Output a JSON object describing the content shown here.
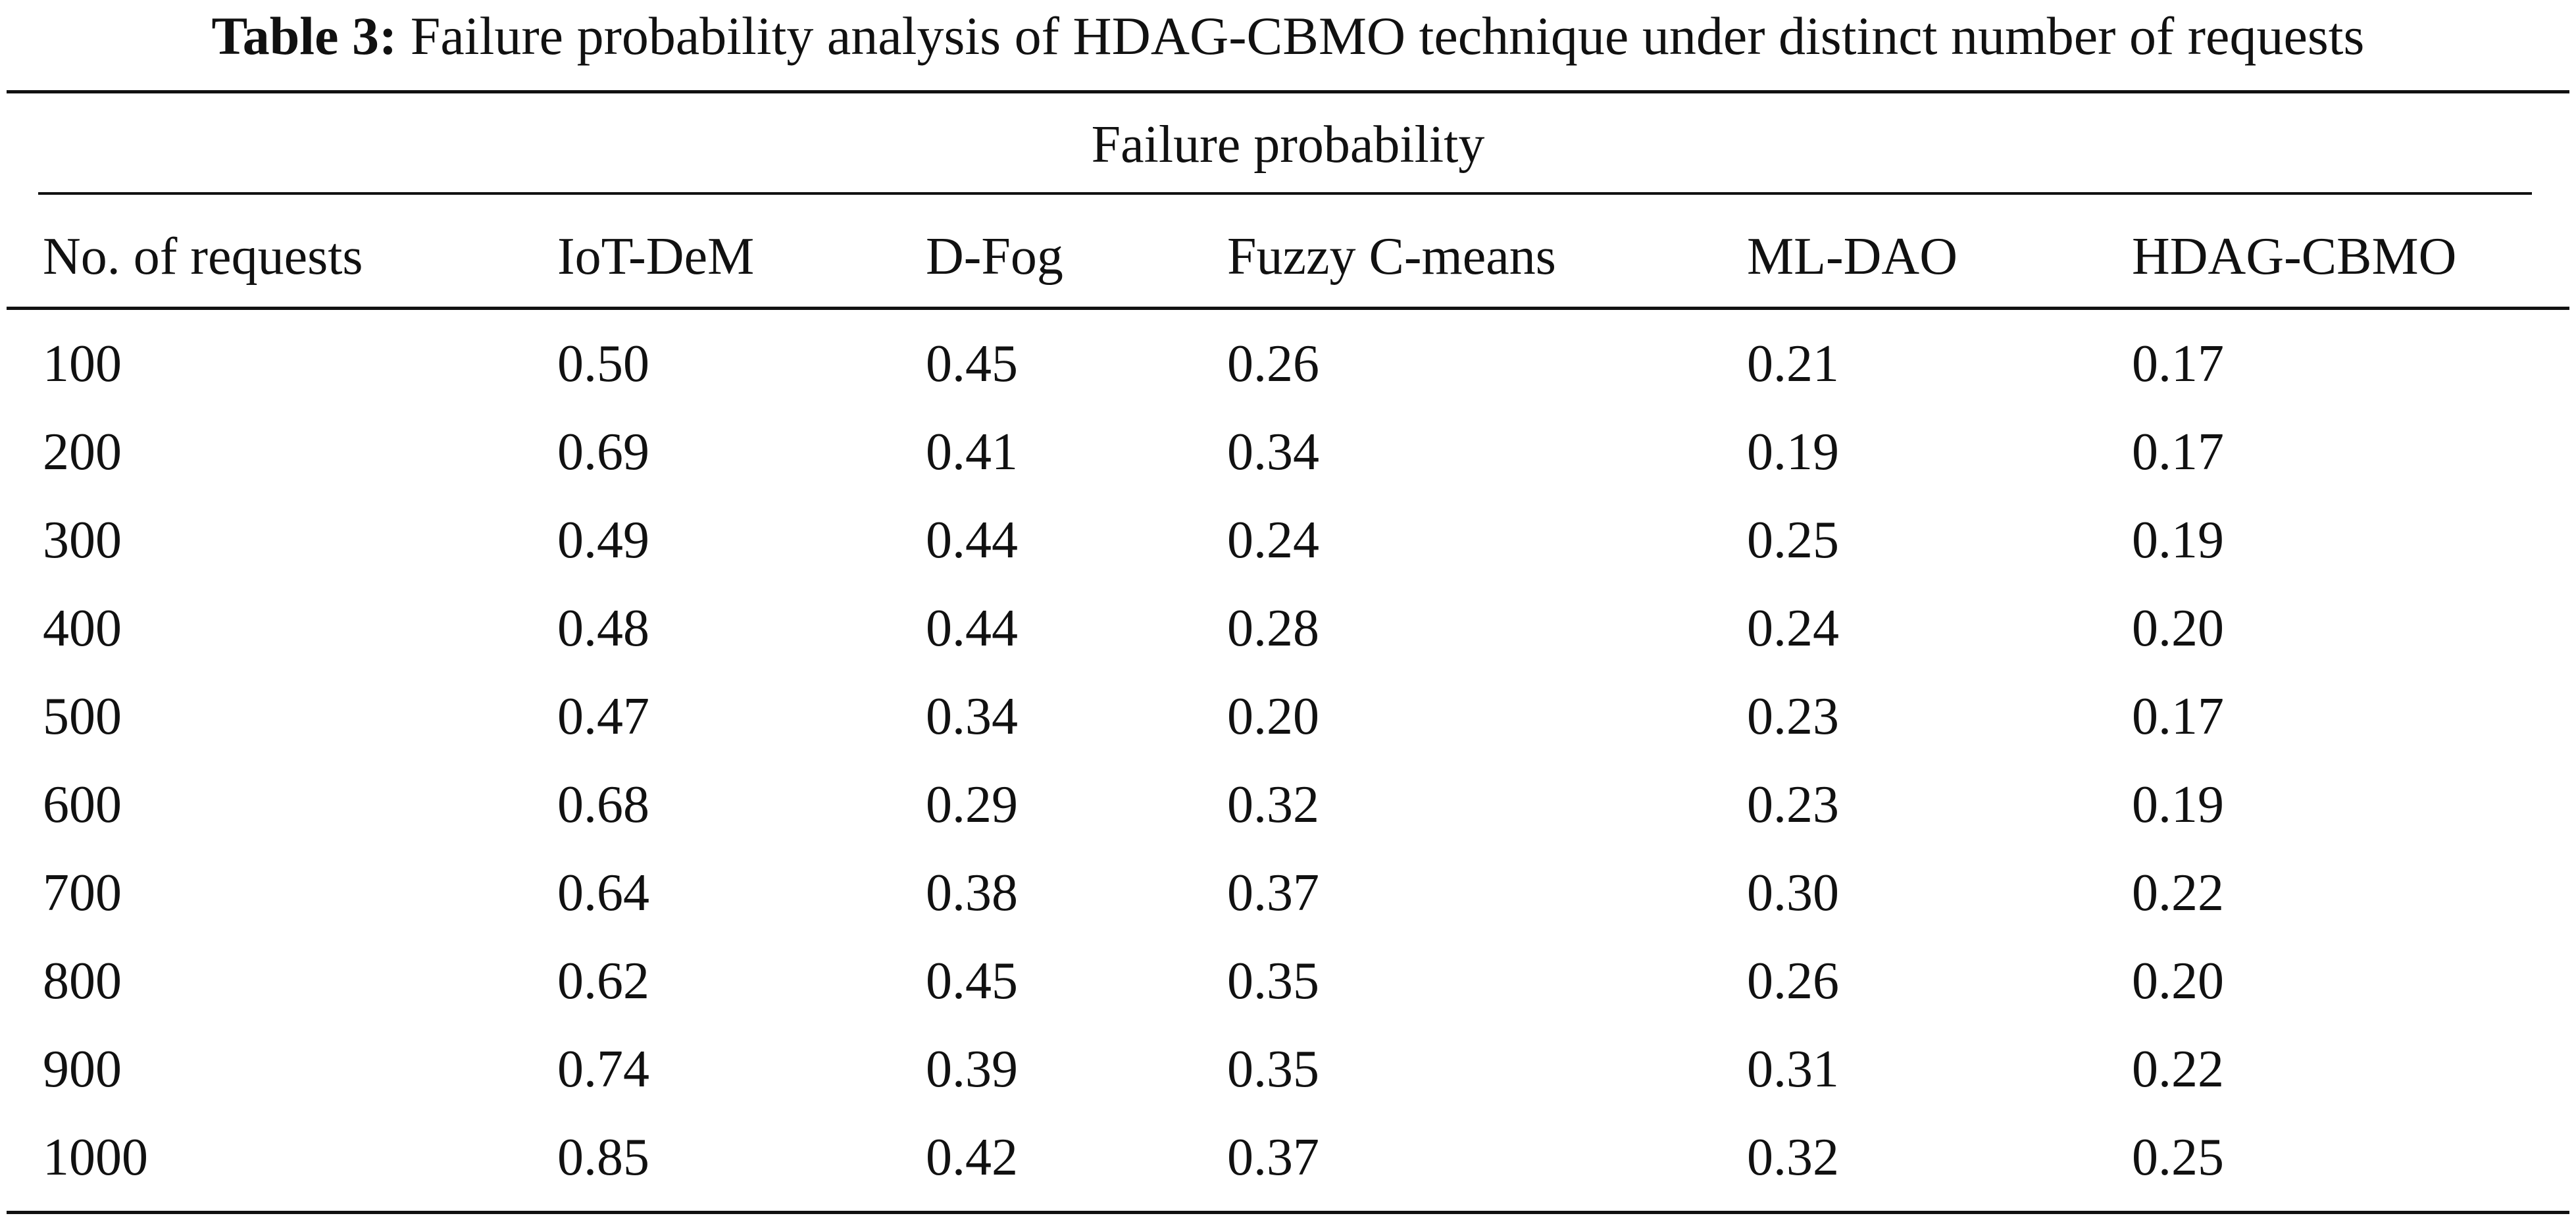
{
  "caption": {
    "label": "Table 3:",
    "text": "Failure probability analysis of HDAG-CBMO technique under distinct number of requests"
  },
  "table": {
    "group_header": "Failure probability",
    "columns": [
      "No. of requests",
      "IoT-DeM",
      "D-Fog",
      "Fuzzy C-means",
      "ML-DAO",
      "HDAG-CBMO"
    ],
    "rows": [
      [
        "100",
        "0.50",
        "0.45",
        "0.26",
        "0.21",
        "0.17"
      ],
      [
        "200",
        "0.69",
        "0.41",
        "0.34",
        "0.19",
        "0.17"
      ],
      [
        "300",
        "0.49",
        "0.44",
        "0.24",
        "0.25",
        "0.19"
      ],
      [
        "400",
        "0.48",
        "0.44",
        "0.28",
        "0.24",
        "0.20"
      ],
      [
        "500",
        "0.47",
        "0.34",
        "0.20",
        "0.23",
        "0.17"
      ],
      [
        "600",
        "0.68",
        "0.29",
        "0.32",
        "0.23",
        "0.19"
      ],
      [
        "700",
        "0.64",
        "0.38",
        "0.37",
        "0.30",
        "0.22"
      ],
      [
        "800",
        "0.62",
        "0.45",
        "0.35",
        "0.26",
        "0.20"
      ],
      [
        "900",
        "0.74",
        "0.39",
        "0.35",
        "0.31",
        "0.22"
      ],
      [
        "1000",
        "0.85",
        "0.42",
        "0.37",
        "0.32",
        "0.25"
      ]
    ]
  }
}
